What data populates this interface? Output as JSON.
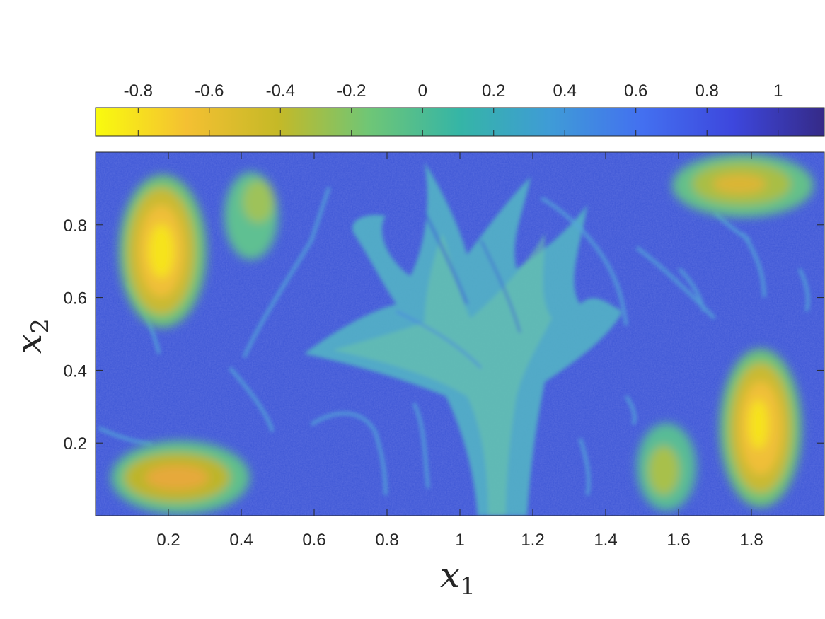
{
  "chart_data": {
    "type": "heatmap",
    "title": "",
    "xlabel": "x",
    "xlabel_sub": "1",
    "ylabel": "x",
    "ylabel_sub": "2",
    "xlim": [
      0,
      2
    ],
    "ylim": [
      0,
      1
    ],
    "xticks": [
      0.2,
      0.4,
      0.6,
      0.8,
      1,
      1.2,
      1.4,
      1.6,
      1.8
    ],
    "xtick_labels": [
      "0.2",
      "0.4",
      "0.6",
      "0.8",
      "1",
      "1.2",
      "1.4",
      "1.6",
      "1.8"
    ],
    "yticks": [
      0.2,
      0.4,
      0.6,
      0.8
    ],
    "ytick_labels": [
      "0.2",
      "0.4",
      "0.6",
      "0.8"
    ],
    "colorbar": {
      "location": "top",
      "range": [
        -0.92,
        1.13
      ],
      "ticks": [
        -0.8,
        -0.6,
        -0.4,
        -0.2,
        0,
        0.2,
        0.4,
        0.6,
        0.8,
        1
      ],
      "tick_labels": [
        "-0.8",
        "-0.6",
        "-0.4",
        "-0.2",
        "0",
        "0.2",
        "0.4",
        "0.6",
        "0.8",
        "1"
      ],
      "colormap": "parula",
      "colors": [
        "#f9fb0e",
        "#f4c032",
        "#c5b927",
        "#6fc676",
        "#35b5a6",
        "#3f9bd7",
        "#4370f0",
        "#3d47dd",
        "#352a87"
      ]
    },
    "background_color": "#3d56d6",
    "grid": false,
    "field_features": [
      {
        "kind": "vortex",
        "center": [
          0.2,
          0.72
        ],
        "value": -0.8
      },
      {
        "kind": "vortex",
        "center": [
          0.2,
          0.1
        ],
        "value": -0.55
      },
      {
        "kind": "vortex",
        "center": [
          0.45,
          0.83
        ],
        "value": -0.2
      },
      {
        "kind": "vortex",
        "center": [
          1.8,
          0.92
        ],
        "value": -0.5
      },
      {
        "kind": "vortex",
        "center": [
          1.82,
          0.25
        ],
        "value": -0.8
      },
      {
        "kind": "vortex",
        "center": [
          1.58,
          0.12
        ],
        "value": -0.3
      },
      {
        "kind": "filament",
        "center": [
          1.05,
          0.45
        ],
        "value": 0.2
      }
    ]
  }
}
